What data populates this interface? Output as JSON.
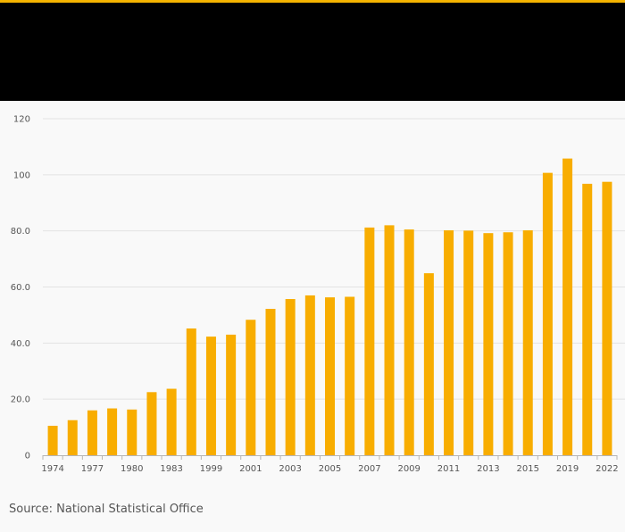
{
  "colors": {
    "accent": "#f5b400",
    "bar": "#f8ad00",
    "header_background": "#000000",
    "page_background": "#f9f9f9",
    "gridline": "#e3e3e3",
    "text": "#555555"
  },
  "source": "Source: National Statistical Office",
  "chart_data": {
    "type": "bar",
    "title": "",
    "xlabel": "",
    "ylabel": "",
    "ylim": [
      0,
      120
    ],
    "yticks": [
      "0",
      "20.0",
      "40.0",
      "60.0",
      "80.0",
      "100",
      "120"
    ],
    "ytick_values": [
      0,
      20,
      40,
      60,
      80,
      100,
      120
    ],
    "grid": true,
    "categories": [
      "1974",
      "1975",
      "1977",
      "1978",
      "1980",
      "1981",
      "1983",
      "1990",
      "1999",
      "2000",
      "2001",
      "2002",
      "2003",
      "2004",
      "2005",
      "2006",
      "2007",
      "2008",
      "2009",
      "2010",
      "2011",
      "2012",
      "2013",
      "2014",
      "2015",
      "2017",
      "2019",
      "2020",
      "2022"
    ],
    "tick_labels": [
      "1974",
      "",
      "1977",
      "",
      "1980",
      "",
      "1983",
      "",
      "1999",
      "",
      "2001",
      "",
      "2003",
      "",
      "2005",
      "",
      "2007",
      "",
      "2009",
      "",
      "2011",
      "",
      "2013",
      "",
      "2015",
      "",
      "2019",
      "",
      "2022"
    ],
    "values": [
      10.5,
      12.5,
      16.0,
      16.7,
      16.3,
      22.5,
      23.7,
      45.2,
      42.3,
      43.0,
      48.3,
      52.2,
      55.7,
      57.0,
      56.3,
      56.5,
      81.2,
      82.0,
      80.5,
      64.9,
      80.2,
      80.1,
      79.2,
      79.5,
      80.2,
      100.7,
      105.8,
      96.8,
      97.5
    ]
  }
}
